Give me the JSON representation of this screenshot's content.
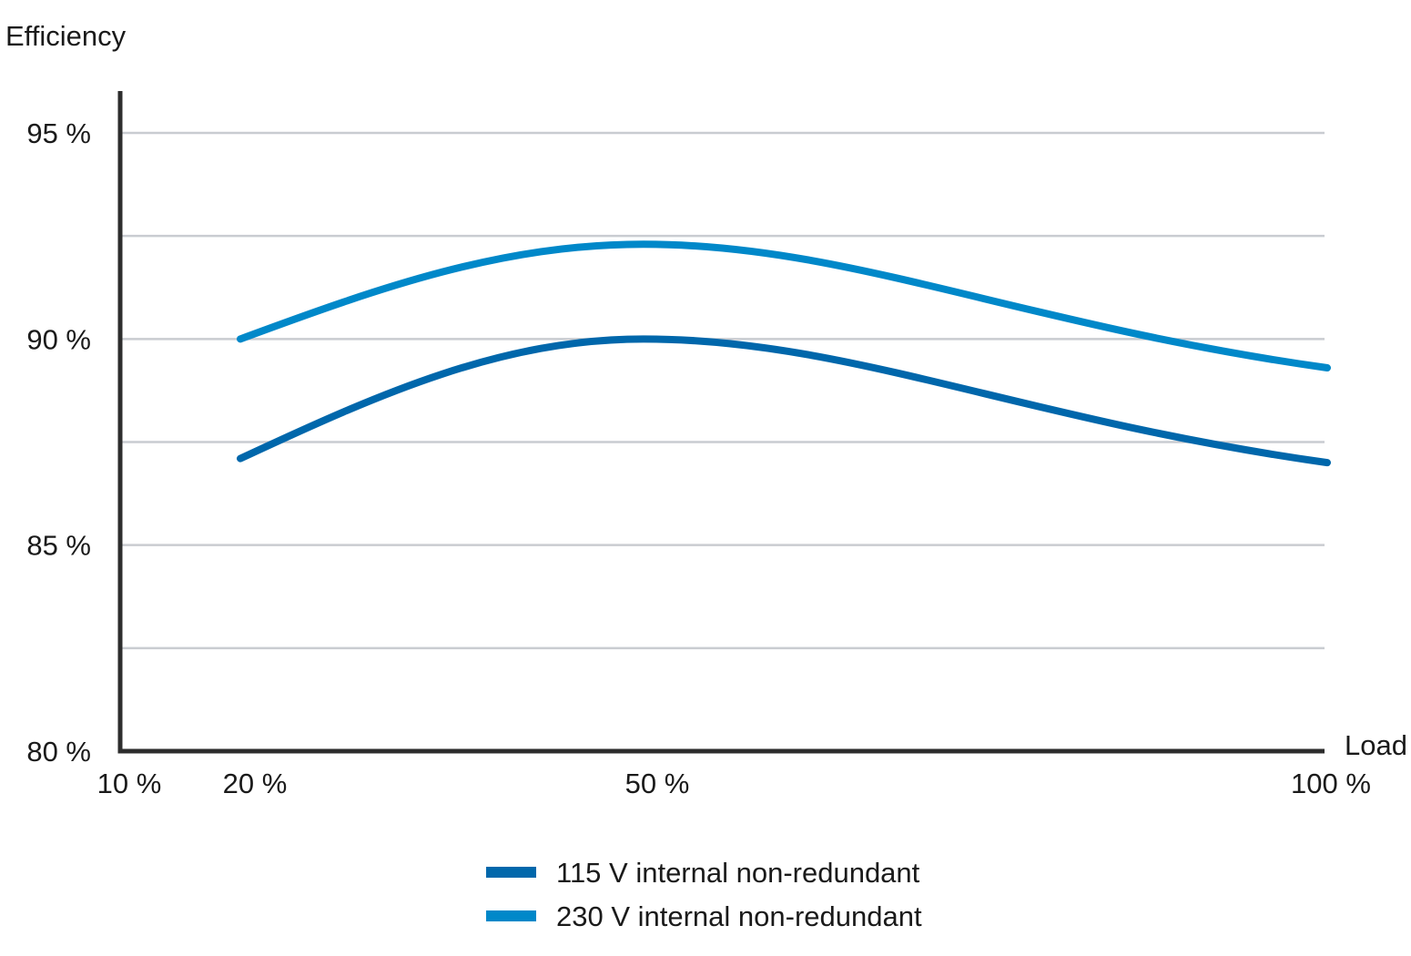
{
  "chart_data": {
    "type": "line",
    "title": "",
    "ylabel": "Efficiency",
    "xlabel": "Load",
    "x_ticks": [
      {
        "value": 10,
        "label": "10 %"
      },
      {
        "value": 20,
        "label": "20 %"
      },
      {
        "value": 50,
        "label": "50 %"
      },
      {
        "value": 100,
        "label": "100 %"
      }
    ],
    "y_ticks": [
      {
        "value": 80,
        "label": "80 %"
      },
      {
        "value": 85,
        "label": "85 %"
      },
      {
        "value": 90,
        "label": "90 %"
      },
      {
        "value": 95,
        "label": "95 %"
      }
    ],
    "y_gridlines": [
      82.5,
      85,
      87.5,
      90,
      92.5,
      95
    ],
    "xlim": [
      10,
      100
    ],
    "ylim": [
      80,
      95.5
    ],
    "grid": true,
    "legend_position": "bottom-center",
    "series": [
      {
        "name": "115 V internal non-redundant",
        "color": "#0067ab",
        "x": [
          20,
          50,
          100
        ],
        "y": [
          87.1,
          90.0,
          87.0
        ]
      },
      {
        "name": "230 V internal non-redundant",
        "color": "#0088c9",
        "x": [
          20,
          50,
          100
        ],
        "y": [
          90.0,
          92.3,
          89.3
        ]
      }
    ]
  },
  "colors": {
    "axis": "#2d2d2d",
    "gridline": "#c9ccd1",
    "text": "#1a1a1a"
  }
}
